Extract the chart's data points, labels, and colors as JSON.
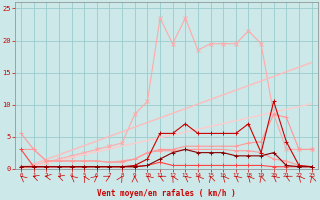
{
  "x": [
    0,
    1,
    2,
    3,
    4,
    5,
    6,
    7,
    8,
    9,
    10,
    11,
    12,
    13,
    14,
    15,
    16,
    17,
    18,
    19,
    20,
    21,
    22,
    23
  ],
  "line_peak": [
    0.3,
    0.5,
    1.0,
    1.5,
    2.0,
    2.5,
    3.0,
    3.5,
    4.0,
    8.5,
    10.5,
    23.5,
    19.5,
    23.5,
    18.5,
    19.5,
    19.5,
    19.5,
    21.5,
    19.5,
    8.5,
    3.0,
    3.0,
    3.0
  ],
  "line_reg1": [
    0.0,
    0.72,
    1.44,
    2.16,
    2.88,
    3.6,
    4.32,
    5.04,
    5.76,
    6.48,
    7.2,
    7.92,
    8.64,
    9.36,
    10.08,
    10.8,
    11.52,
    12.24,
    12.96,
    13.68,
    14.4,
    15.12,
    15.84,
    16.56
  ],
  "line_reg2": [
    0.0,
    0.44,
    0.88,
    1.32,
    1.76,
    2.2,
    2.64,
    3.08,
    3.52,
    3.96,
    4.4,
    4.84,
    5.28,
    5.72,
    6.16,
    6.6,
    7.04,
    7.48,
    7.92,
    8.36,
    8.8,
    9.24,
    9.68,
    10.12
  ],
  "line_med": [
    3.0,
    3.0,
    1.2,
    1.2,
    1.2,
    1.2,
    1.2,
    1.0,
    1.2,
    1.5,
    2.5,
    3.0,
    3.0,
    3.5,
    3.5,
    3.5,
    3.5,
    3.5,
    4.0,
    4.2,
    8.5,
    8.0,
    3.0,
    3.0
  ],
  "line_low2": [
    5.5,
    3.0,
    1.2,
    1.2,
    1.2,
    1.2,
    1.2,
    1.0,
    1.0,
    1.5,
    2.5,
    2.8,
    2.8,
    3.0,
    3.0,
    3.0,
    3.0,
    2.8,
    2.8,
    2.5,
    1.5,
    1.2,
    0.5,
    0.3
  ],
  "line_low1": [
    3.0,
    0.3,
    0.3,
    0.3,
    0.3,
    0.3,
    0.3,
    0.3,
    0.3,
    0.3,
    0.5,
    1.0,
    0.5,
    0.5,
    0.5,
    0.5,
    0.5,
    0.5,
    0.5,
    0.5,
    0.3,
    0.3,
    0.3,
    0.3
  ],
  "line_dark": [
    0.3,
    0.3,
    0.3,
    0.3,
    0.3,
    0.3,
    0.3,
    0.3,
    0.3,
    0.5,
    1.5,
    5.5,
    5.5,
    7.0,
    5.5,
    5.5,
    5.5,
    5.5,
    7.0,
    2.5,
    10.5,
    4.2,
    0.5,
    0.3
  ],
  "line_darkest": [
    0.3,
    0.3,
    0.3,
    0.3,
    0.3,
    0.3,
    0.3,
    0.3,
    0.3,
    0.3,
    0.5,
    1.5,
    2.5,
    3.0,
    2.5,
    2.5,
    2.5,
    2.0,
    2.0,
    2.0,
    2.5,
    0.5,
    0.3,
    0.3
  ],
  "bg_color": "#cce8e8",
  "grid_color": "#99cccc",
  "xlabel": "Vent moyen/en rafales ( km/h )",
  "xlabel_color": "#cc0000",
  "tick_color": "#cc0000",
  "ylim": [
    0,
    26
  ],
  "xlim": [
    -0.5,
    23.5
  ],
  "yticks": [
    0,
    5,
    10,
    15,
    20,
    25
  ],
  "xticks": [
    0,
    1,
    2,
    3,
    4,
    5,
    6,
    7,
    8,
    9,
    10,
    11,
    12,
    13,
    14,
    15,
    16,
    17,
    18,
    19,
    20,
    21,
    22,
    23
  ],
  "arrow_angles": [
    200,
    220,
    240,
    220,
    200,
    190,
    160,
    150,
    170,
    180,
    200,
    210,
    190,
    200,
    195,
    185,
    195,
    200,
    195,
    185,
    200,
    210,
    195,
    185
  ]
}
